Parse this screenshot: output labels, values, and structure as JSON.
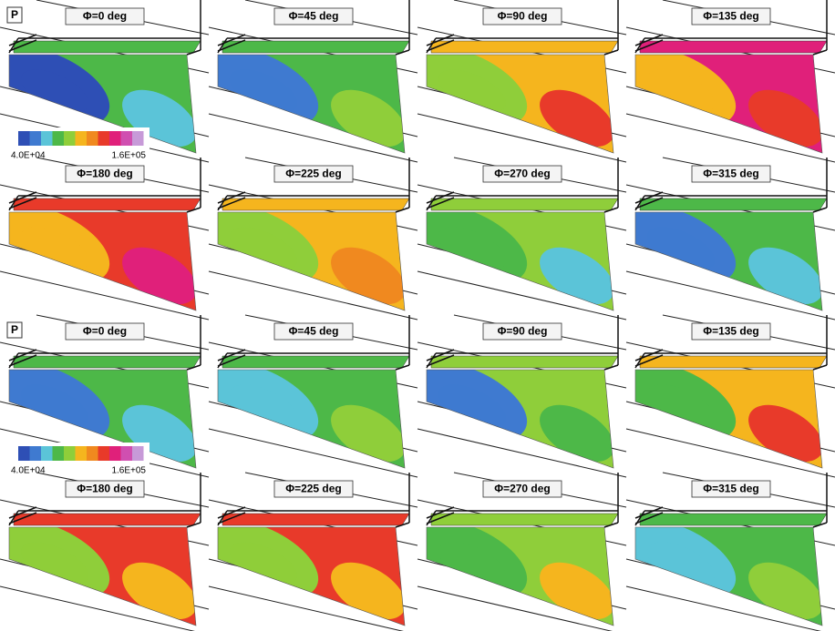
{
  "groups": [
    {
      "label": "P",
      "colorbar": {
        "min_label": "4.0E+04",
        "max_label": "1.6E+05",
        "colors": [
          "#2e4fb5",
          "#3f7ad0",
          "#5bc4d8",
          "#4db848",
          "#8fce3a",
          "#f5b51e",
          "#f0891f",
          "#e83a2a",
          "#e0207a",
          "#d04fb0",
          "#c79ad8"
        ]
      },
      "panels": [
        "Φ=0 deg",
        "Φ=45 deg",
        "Φ=90 deg",
        "Φ=135 deg",
        "Φ=180 deg",
        "Φ=225 deg",
        "Φ=270 deg",
        "Φ=315 deg"
      ]
    },
    {
      "label": "P",
      "colorbar": {
        "min_label": "4.0E+04",
        "max_label": "1.6E+05",
        "colors": [
          "#2e4fb5",
          "#3f7ad0",
          "#5bc4d8",
          "#4db848",
          "#8fce3a",
          "#f5b51e",
          "#f0891f",
          "#e83a2a",
          "#e0207a",
          "#d04fb0",
          "#c79ad8"
        ]
      },
      "panels": [
        "Φ=0 deg",
        "Φ=45 deg",
        "Φ=90 deg",
        "Φ=135 deg",
        "Φ=180 deg",
        "Φ=225 deg",
        "Φ=270 deg",
        "Φ=315 deg"
      ]
    }
  ]
}
